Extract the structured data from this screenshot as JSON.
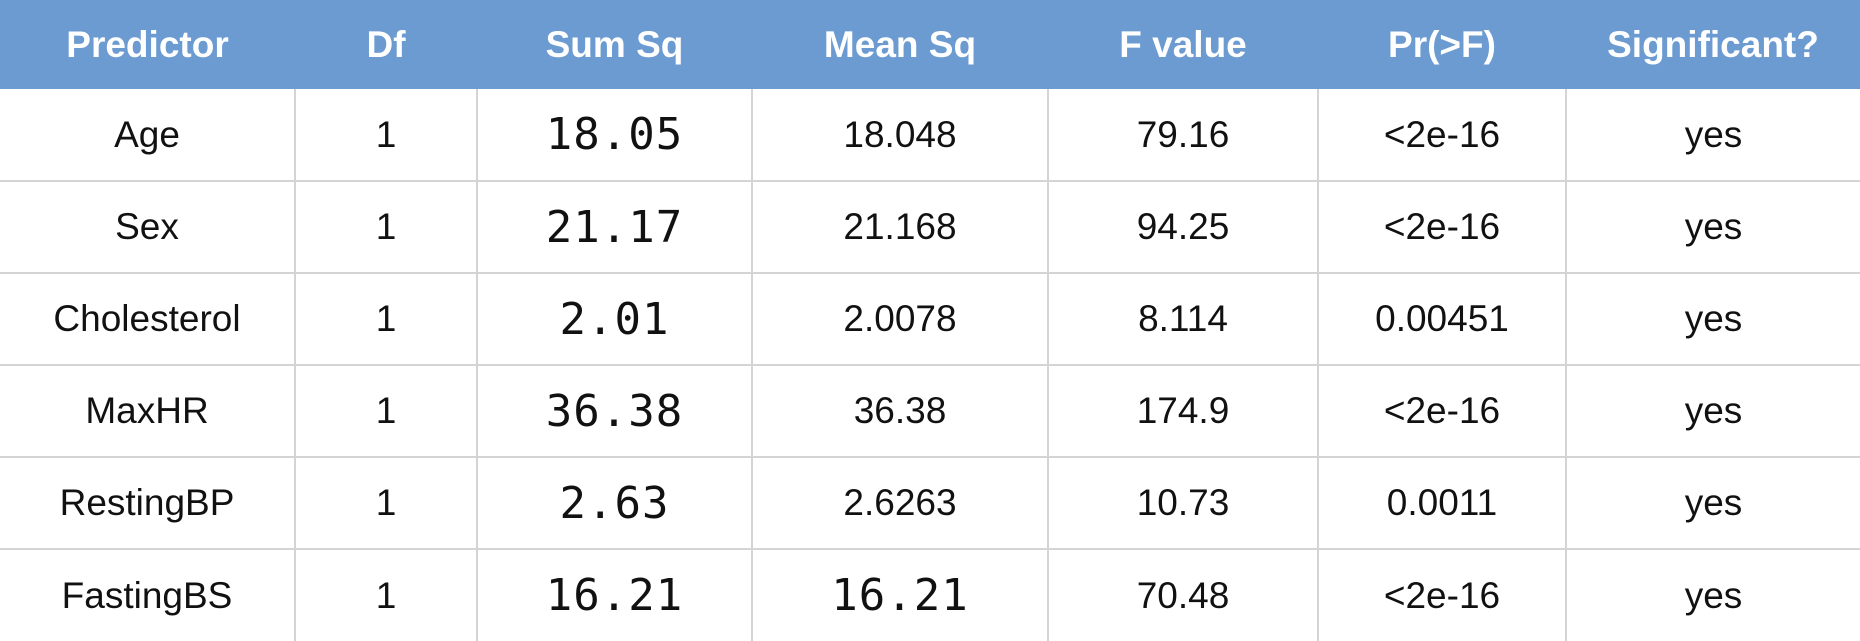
{
  "table": {
    "columns": [
      "Predictor",
      "Df",
      "Sum Sq",
      "Mean Sq",
      "F value",
      "Pr(>F)",
      "Significant?"
    ],
    "rows": [
      {
        "predictor": "Age",
        "df": "1",
        "sum_sq": "18.05",
        "mean_sq": "18.048",
        "f_value": "79.16",
        "p_value": "<2e-16",
        "significant": "yes"
      },
      {
        "predictor": "Sex",
        "df": "1",
        "sum_sq": "21.17",
        "mean_sq": "21.168",
        "f_value": "94.25",
        "p_value": "<2e-16",
        "significant": "yes"
      },
      {
        "predictor": "Cholesterol",
        "df": "1",
        "sum_sq": "2.01",
        "mean_sq": "2.0078",
        "f_value": "8.114",
        "p_value": "0.00451",
        "significant": "yes"
      },
      {
        "predictor": "MaxHR",
        "df": "1",
        "sum_sq": "36.38",
        "mean_sq": "36.38",
        "f_value": "174.9",
        "p_value": "<2e-16",
        "significant": "yes"
      },
      {
        "predictor": "RestingBP",
        "df": "1",
        "sum_sq": "2.63",
        "mean_sq": "2.6263",
        "f_value": "10.73",
        "p_value": "0.0011",
        "significant": "yes"
      },
      {
        "predictor": "FastingBS",
        "df": "1",
        "sum_sq": "16.21",
        "mean_sq": "16.21",
        "f_value": "70.48",
        "p_value": "<2e-16",
        "significant": "yes"
      }
    ]
  },
  "colors": {
    "header_background": "#6b9bd1",
    "header_text": "#ffffff",
    "grid_line": "#d4d4d4"
  }
}
